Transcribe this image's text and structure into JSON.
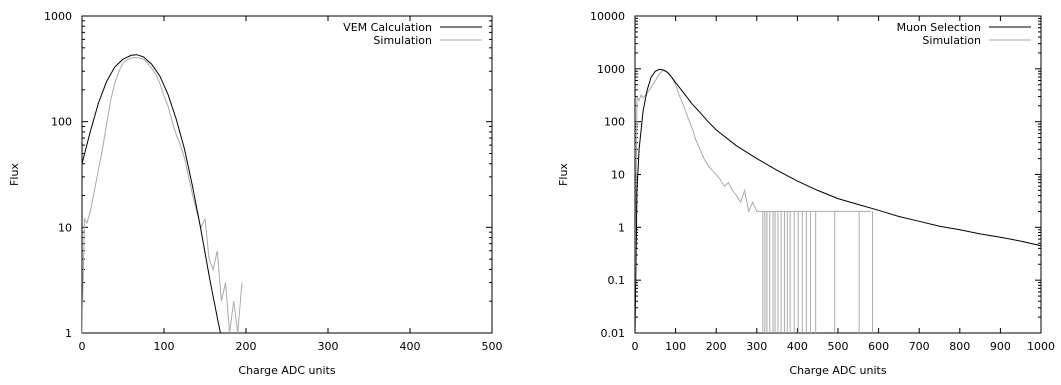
{
  "chart_data": [
    {
      "type": "line",
      "xlabel": "Charge ADC units",
      "ylabel": "Flux",
      "xlim": [
        0,
        500
      ],
      "ylim": [
        1,
        1000
      ],
      "yscale": "log",
      "grid": false,
      "legend_position": "top-right",
      "x_ticks": [
        "0",
        "100",
        "200",
        "300",
        "400",
        "500"
      ],
      "y_ticks": [
        "1",
        "10",
        "100",
        "1000"
      ],
      "series": [
        {
          "name": "VEM Calculation",
          "color": "#000000",
          "x": [
            0,
            10,
            20,
            30,
            40,
            50,
            60,
            67,
            75,
            85,
            95,
            105,
            115,
            125,
            135,
            145,
            155,
            160,
            165,
            170
          ],
          "y": [
            40,
            80,
            150,
            240,
            330,
            390,
            425,
            430,
            410,
            350,
            270,
            180,
            105,
            55,
            24,
            9.5,
            3.5,
            2.2,
            1.4,
            0.9
          ]
        },
        {
          "name": "Simulation",
          "color": "#aaaaaa",
          "x": [
            0,
            3,
            6,
            10,
            15,
            20,
            25,
            30,
            35,
            40,
            45,
            50,
            55,
            60,
            65,
            70,
            75,
            80,
            85,
            90,
            95,
            100,
            105,
            110,
            115,
            120,
            125,
            130,
            135,
            140,
            145,
            150,
            155,
            160,
            165,
            170,
            175,
            180,
            185,
            190,
            195
          ],
          "y": [
            1,
            12,
            11,
            14,
            22,
            35,
            55,
            95,
            160,
            230,
            300,
            360,
            385,
            400,
            405,
            400,
            390,
            360,
            320,
            280,
            230,
            175,
            140,
            100,
            75,
            60,
            45,
            30,
            20,
            14,
            10,
            12,
            5,
            4,
            6,
            2,
            3,
            1,
            2,
            1,
            3
          ]
        }
      ]
    },
    {
      "type": "line",
      "xlabel": "Charge ADC units",
      "ylabel": "Flux",
      "xlim": [
        0,
        1000
      ],
      "ylim": [
        0.01,
        10000
      ],
      "yscale": "log",
      "grid": false,
      "legend_position": "top-right",
      "x_ticks": [
        "0",
        "100",
        "200",
        "300",
        "400",
        "500",
        "600",
        "700",
        "800",
        "900",
        "1000"
      ],
      "y_ticks": [
        "0.01",
        "0.1",
        "1",
        "10",
        "100",
        "1000",
        "10000"
      ],
      "series": [
        {
          "name": "Muon  Selection",
          "color": "#000000",
          "x": [
            0,
            5,
            10,
            20,
            30,
            40,
            50,
            60,
            70,
            80,
            90,
            100,
            120,
            140,
            160,
            180,
            200,
            250,
            300,
            350,
            400,
            450,
            500,
            550,
            600,
            650,
            700,
            750,
            800,
            850,
            900,
            950,
            1000
          ],
          "y": [
            0.01,
            5,
            30,
            160,
            400,
            700,
            900,
            980,
            950,
            850,
            700,
            550,
            350,
            220,
            150,
            100,
            70,
            35,
            20,
            12,
            7.5,
            5,
            3.5,
            2.7,
            2.1,
            1.6,
            1.3,
            1.05,
            0.9,
            0.75,
            0.65,
            0.55,
            0.45
          ]
        },
        {
          "name": "Simulation",
          "color": "#aaaaaa",
          "x": [
            0,
            5,
            10,
            15,
            20,
            30,
            40,
            50,
            60,
            70,
            80,
            90,
            100,
            110,
            120,
            130,
            140,
            150,
            160,
            170,
            180,
            190,
            200,
            210,
            220,
            230,
            240,
            250,
            260,
            270,
            280,
            290,
            300,
            310,
            320,
            330,
            340,
            350,
            360,
            380,
            400,
            420,
            440,
            460,
            480,
            500,
            520,
            540,
            560,
            580
          ],
          "y": [
            0.02,
            300,
            250,
            320,
            280,
            350,
            450,
            600,
            800,
            950,
            900,
            700,
            500,
            300,
            200,
            120,
            80,
            45,
            30,
            20,
            15,
            12,
            10,
            8,
            6,
            7,
            5,
            4,
            3,
            5,
            2,
            3,
            2,
            2,
            2,
            2,
            2,
            2,
            2,
            2,
            2,
            2,
            2,
            2,
            2,
            2,
            2,
            2,
            2,
            2
          ]
        }
      ],
      "spikes": [
        315,
        320,
        325,
        332,
        340,
        345,
        352,
        360,
        368,
        375,
        382,
        392,
        402,
        412,
        422,
        432,
        445,
        492,
        552,
        585
      ]
    }
  ]
}
